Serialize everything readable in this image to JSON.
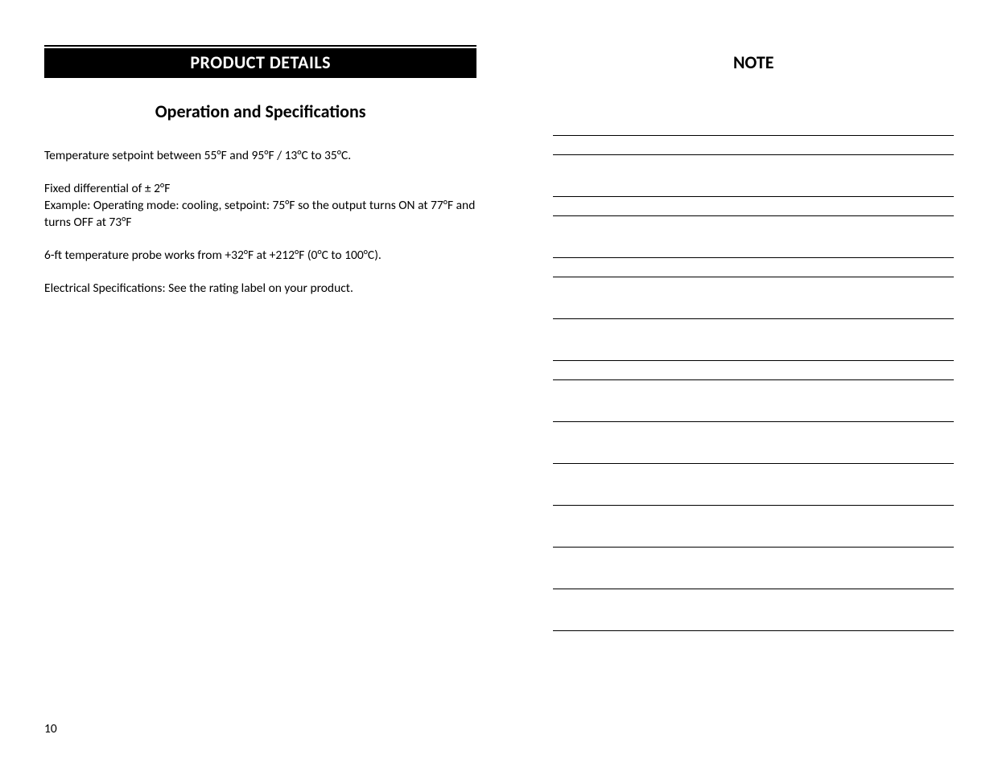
{
  "left": {
    "header": "PRODUCT DETAILS",
    "subheading": "Operation and Specifications",
    "paragraphs": {
      "p1": "Temperature setpoint between 55°F and 95°F / 13°C to 35°C.",
      "p2a": "Fixed differential of ± 2°F",
      "p2b": "Example: Operating mode: cooling, setpoint:  75°F so the output turns ON at 77°F and turns OFF at 73°F",
      "p3": "6-ft temperature probe works from +32°F at +212°F (0°C to 100°C).",
      "p4": "Electrical Specifications: See the rating label on your product."
    }
  },
  "right": {
    "heading": "NOTE",
    "note_groups": [
      2,
      2,
      2,
      1,
      2,
      1,
      1,
      1,
      1,
      1,
      1
    ],
    "line_color": "#000000"
  },
  "page_number": "10",
  "colors": {
    "header_bg": "#000000",
    "header_text": "#ffffff",
    "body_text": "#000000",
    "page_bg": "#ffffff"
  },
  "typography": {
    "header_fontsize_pt": 16,
    "subheading_fontsize_pt": 16,
    "body_fontsize_pt": 11.5,
    "font_family": "Calibri"
  }
}
